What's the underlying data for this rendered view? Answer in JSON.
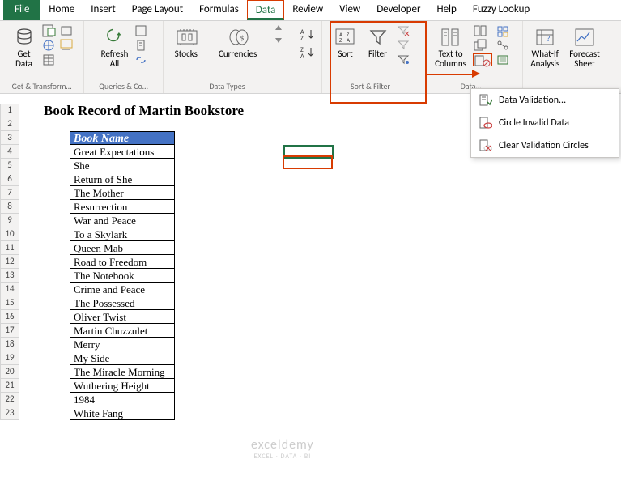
{
  "menu": {
    "items": [
      "File",
      "Home",
      "Insert",
      "Page Layout",
      "Formulas",
      "Data",
      "Review",
      "View",
      "Developer",
      "Help",
      "Fuzzy Lookup"
    ],
    "active": "Data"
  },
  "ribbon": {
    "group1": {
      "label": "Get & Transform…",
      "get_data": "Get\nData"
    },
    "group2": {
      "label": "Queries & Co…",
      "refresh": "Refresh\nAll"
    },
    "group3": {
      "label": "Data Types",
      "stocks": "Stocks",
      "currencies": "Currencies"
    },
    "group4": {
      "label": "Sort & Filter",
      "sort": "Sort",
      "filter": "Filter"
    },
    "group5": {
      "label": "Data…",
      "textcols": "Text to\nColumns"
    },
    "group6": {
      "whatif": "What-If\nAnalysis",
      "forecast": "Forecast\nSheet"
    }
  },
  "dropdown": {
    "validation": "Data Validation...",
    "circle": "Circle Invalid Data",
    "clear": "Clear Validation Circles"
  },
  "sheet": {
    "title": "Book Record of Martin Bookstore",
    "col_header": "Book Name",
    "books": [
      "Great Expectations",
      "She",
      "Return of She",
      "The Mother",
      "Resurrection",
      "War and Peace",
      "To a Skylark",
      "Queen Mab",
      "Road to Freedom",
      "The Notebook",
      "Crime and Peace",
      "The Possessed",
      "Oliver Twist",
      "Martin Chuzzulet",
      "Merry",
      "My Side",
      "The Miracle Morning",
      "Wuthering Height",
      "1984",
      "White Fang"
    ],
    "row_start": 1,
    "row_end": 23
  },
  "watermark": {
    "line1": "exceldemy",
    "line2": "EXCEL · DATA · BI"
  },
  "colors": {
    "accent": "#217346",
    "header_fill": "#4472c4",
    "highlight": "#d83b01"
  }
}
